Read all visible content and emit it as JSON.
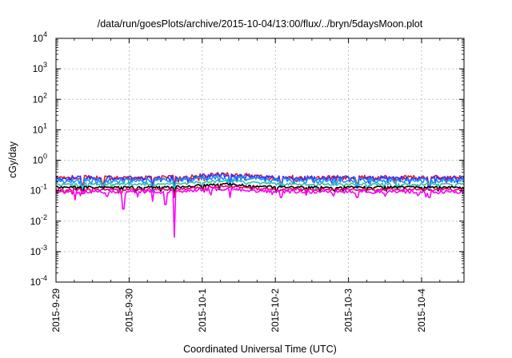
{
  "chart_data": {
    "type": "line",
    "title": "/data/run/goesPlots/archive/2015-10-04/13:00/flux/../bryn/5daysMoon.plot",
    "xlabel": "Coordinated Universal Time (UTC)",
    "ylabel": "cGy/day",
    "yscale": "log",
    "ylim": [
      0.0001,
      10000
    ],
    "xlim": [
      0,
      5.58
    ],
    "grid": true,
    "x_tick_labels": [
      "2015-9-29",
      "2015-9-30",
      "2015-10-1",
      "2015-10-2",
      "2015-10-3",
      "2015-10-4"
    ],
    "x_tick_positions_days": [
      0,
      1,
      2,
      3,
      4,
      5
    ],
    "y_tick_labels": [
      {
        "base": "10",
        "exp": "4"
      },
      {
        "base": "10",
        "exp": "3"
      },
      {
        "base": "10",
        "exp": "2"
      },
      {
        "base": "10",
        "exp": "1"
      },
      {
        "base": "10",
        "exp": "0"
      },
      {
        "base": "10",
        "exp": "-1"
      },
      {
        "base": "10",
        "exp": "-2"
      },
      {
        "base": "10",
        "exp": "-3"
      },
      {
        "base": "10",
        "exp": "-4"
      }
    ],
    "series": [
      {
        "color": "#e41a1c",
        "base": 0.27,
        "noise": 0.18,
        "dips": [
          [
            0.36,
            0.16
          ],
          [
            0.64,
            0.17
          ],
          [
            1.32,
            0.14
          ],
          [
            1.62,
            0.13
          ],
          [
            2.38,
            0.18
          ],
          [
            3.08,
            0.18
          ],
          [
            4.12,
            0.17
          ],
          [
            5.1,
            0.16
          ]
        ]
      },
      {
        "color": "#3333ff",
        "base": 0.26,
        "noise": 0.18,
        "dips": [
          [
            0.36,
            0.12
          ],
          [
            0.64,
            0.13
          ],
          [
            1.32,
            0.11
          ],
          [
            1.62,
            0.1
          ],
          [
            2.38,
            0.15
          ],
          [
            3.08,
            0.15
          ],
          [
            4.12,
            0.14
          ],
          [
            5.1,
            0.13
          ]
        ]
      },
      {
        "color": "#1e90ff",
        "base": 0.22,
        "noise": 0.18,
        "dips": [
          [
            0.36,
            0.1
          ],
          [
            0.64,
            0.11
          ],
          [
            1.32,
            0.09
          ],
          [
            1.62,
            0.08
          ],
          [
            2.38,
            0.13
          ],
          [
            3.08,
            0.13
          ],
          [
            4.12,
            0.12
          ],
          [
            5.1,
            0.11
          ]
        ]
      },
      {
        "color": "#2ec4a6",
        "base": 0.165,
        "noise": 0.1,
        "dips": [
          [
            0.36,
            0.12
          ],
          [
            1.32,
            0.11
          ],
          [
            1.62,
            0.1
          ]
        ]
      },
      {
        "color": "#000000",
        "base": 0.13,
        "noise": 0.08,
        "dips": [
          [
            0.36,
            0.1
          ],
          [
            1.62,
            0.08
          ]
        ]
      },
      {
        "color": "#e2006a",
        "base": 0.11,
        "noise": 0.08,
        "dips": [
          [
            0.36,
            0.08
          ],
          [
            1.62,
            0.06
          ]
        ]
      },
      {
        "color": "#ff00ff",
        "base": 0.092,
        "noise": 0.12,
        "dips": [
          [
            0.26,
            0.05
          ],
          [
            0.92,
            0.025
          ],
          [
            1.32,
            0.045
          ],
          [
            1.5,
            0.035
          ],
          [
            1.62,
            0.003
          ],
          [
            2.38,
            0.06
          ],
          [
            3.08,
            0.06
          ],
          [
            4.12,
            0.06
          ],
          [
            5.1,
            0.06
          ]
        ]
      }
    ]
  }
}
